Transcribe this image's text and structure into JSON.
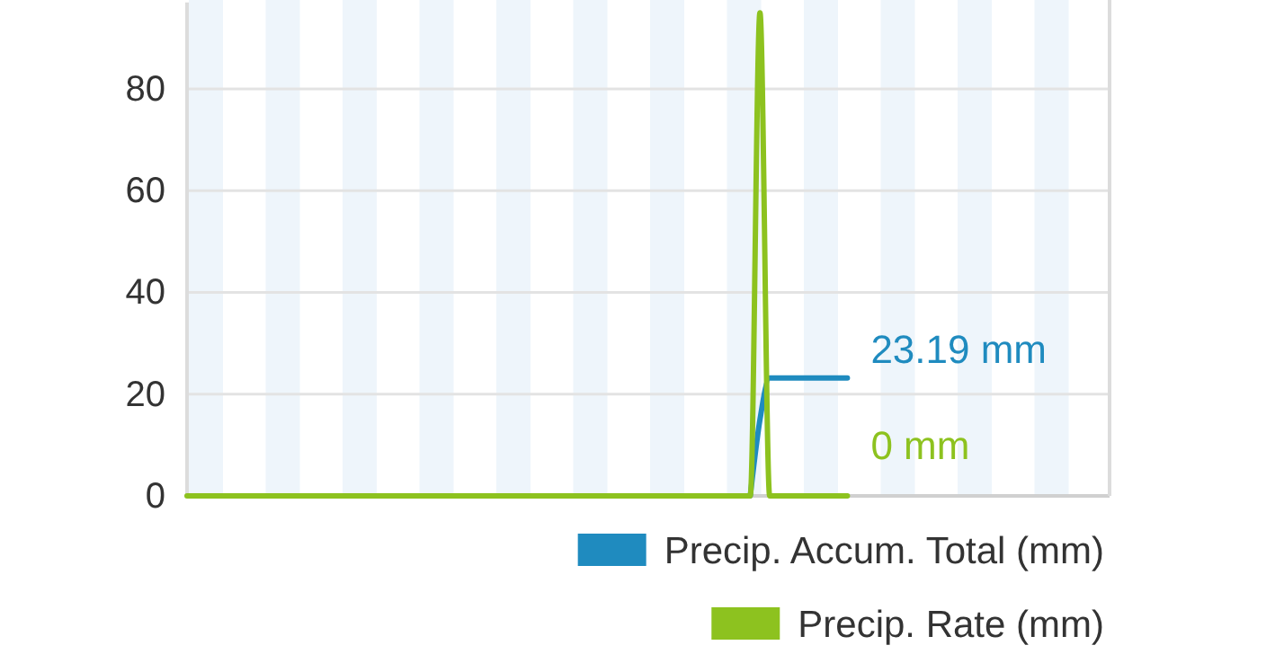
{
  "chart_data": {
    "type": "line",
    "categories": [
      null,
      null,
      null,
      null,
      null,
      null,
      null,
      null,
      null,
      null,
      null,
      null,
      null,
      null,
      null,
      null,
      null,
      null,
      null,
      null,
      null,
      null,
      null,
      null,
      null,
      null,
      null,
      null,
      null,
      null,
      null,
      null,
      null,
      null,
      null,
      null,
      null,
      null,
      null,
      null,
      null,
      null,
      null,
      null,
      null,
      null,
      null,
      null,
      null,
      null,
      null,
      null,
      null,
      null,
      null,
      null,
      null,
      null,
      null,
      null,
      null,
      null,
      null,
      null,
      null,
      null,
      null,
      null,
      null,
      null,
      null,
      null,
      null,
      null,
      null,
      null,
      null,
      null,
      null,
      null,
      null,
      null,
      null,
      null,
      null,
      null,
      null,
      null,
      null,
      null,
      null,
      null,
      null,
      null,
      null,
      null
    ],
    "series": [
      {
        "name": "Precip. Accum. Total (mm)",
        "color": "#1f8bbf",
        "values": [
          null,
          null,
          null,
          null,
          null,
          null,
          null,
          null,
          null,
          null,
          null,
          null,
          null,
          null,
          null,
          null,
          null,
          null,
          null,
          null,
          null,
          null,
          null,
          null,
          null,
          null,
          null,
          null,
          null,
          null,
          null,
          null,
          null,
          null,
          null,
          null,
          null,
          null,
          null,
          null,
          null,
          null,
          null,
          null,
          null,
          null,
          null,
          null,
          null,
          null,
          null,
          null,
          null,
          null,
          null,
          null,
          null,
          null,
          0,
          15,
          23.19,
          23.19,
          23.19,
          23.19,
          23.19,
          23.19,
          23.19,
          23.19,
          23.19,
          null,
          null,
          null,
          null,
          null,
          null,
          null,
          null,
          null,
          null,
          null,
          null,
          null,
          null,
          null,
          null,
          null,
          null,
          null,
          null,
          null,
          null,
          null,
          null,
          null,
          null,
          null
        ],
        "value_labels": [
          null,
          null,
          null,
          null,
          null,
          null,
          null,
          null,
          null,
          null,
          null,
          null,
          null,
          null,
          null,
          null,
          null,
          null,
          null,
          null,
          null,
          null,
          null,
          null,
          null,
          null,
          null,
          null,
          null,
          null,
          null,
          null,
          null,
          null,
          null,
          null,
          null,
          null,
          null,
          null,
          null,
          null,
          null,
          null,
          null,
          null,
          null,
          null,
          null,
          null,
          null,
          null,
          null,
          null,
          null,
          null,
          null,
          null,
          null,
          null,
          null,
          null,
          null,
          null,
          null,
          null,
          null,
          null,
          "23.19 mm",
          null,
          null,
          null,
          null,
          null,
          null,
          null,
          null,
          null,
          null,
          null,
          null,
          null,
          null,
          null,
          null,
          null,
          null,
          null,
          null,
          null,
          null,
          null,
          null,
          null,
          null,
          null
        ]
      },
      {
        "name": "Precip. Rate (mm)",
        "color": "#8dc21f",
        "values": [
          0,
          0,
          0,
          0,
          0,
          0,
          0,
          0,
          0,
          0,
          0,
          0,
          0,
          0,
          0,
          0,
          0,
          0,
          0,
          0,
          0,
          0,
          0,
          0,
          0,
          0,
          0,
          0,
          0,
          0,
          0,
          0,
          0,
          0,
          0,
          0,
          0,
          0,
          0,
          0,
          0,
          0,
          0,
          0,
          0,
          0,
          0,
          0,
          0,
          0,
          0,
          0,
          0,
          0,
          0,
          0,
          0,
          0,
          0,
          95,
          0,
          0,
          0,
          0,
          0,
          0,
          0,
          0,
          0,
          null,
          null,
          null,
          null,
          null,
          null,
          null,
          null,
          null,
          null,
          null,
          null,
          null,
          null,
          null,
          null,
          null,
          null,
          null,
          null,
          null,
          null,
          null,
          null,
          null,
          null,
          null
        ],
        "value_labels": [
          null,
          null,
          null,
          null,
          null,
          null,
          null,
          null,
          null,
          null,
          null,
          null,
          null,
          null,
          null,
          null,
          null,
          null,
          null,
          null,
          null,
          null,
          null,
          null,
          null,
          null,
          null,
          null,
          null,
          null,
          null,
          null,
          null,
          null,
          null,
          null,
          null,
          null,
          null,
          null,
          null,
          null,
          null,
          null,
          null,
          null,
          null,
          null,
          null,
          null,
          null,
          null,
          null,
          null,
          null,
          null,
          null,
          null,
          null,
          null,
          null,
          null,
          null,
          null,
          null,
          null,
          null,
          null,
          "0 mm",
          null,
          null,
          null,
          null,
          null,
          null,
          null,
          null,
          null,
          null,
          null,
          null,
          null,
          null,
          null,
          null,
          null,
          null,
          null,
          null,
          null,
          null,
          null,
          null,
          null,
          null,
          null
        ]
      }
    ],
    "ylim": [
      0,
      97
    ],
    "yticks": [
      0,
      20,
      40,
      60,
      80
    ],
    "grid": "y",
    "legend": "bottom right",
    "tick_labels": "y",
    "marker": "none",
    "line_style": "solid"
  }
}
